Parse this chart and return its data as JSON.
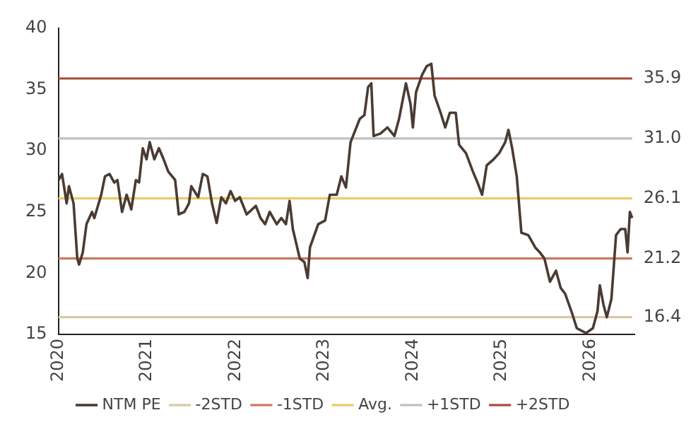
{
  "chart_data": {
    "type": "line",
    "xlim": [
      2020,
      2026.5
    ],
    "xticks": [
      2020,
      2021,
      2022,
      2023,
      2024,
      2025,
      2026
    ],
    "ylim": [
      15,
      40
    ],
    "yticks": [
      15,
      20,
      25,
      30,
      35,
      40
    ],
    "grid": false,
    "legend": "bottom",
    "marker": "none",
    "line_style": "solid",
    "series": [
      {
        "name": "NTM PE",
        "color": "#4a3b32",
        "x": [
          2020.005,
          2020.042,
          2020.094,
          2020.12,
          2020.172,
          2020.214,
          2020.234,
          2020.276,
          2020.318,
          2020.38,
          2020.406,
          2020.484,
          2020.526,
          2020.578,
          2020.63,
          2020.667,
          2020.719,
          2020.771,
          2020.823,
          2020.875,
          2020.911,
          2020.953,
          2020.995,
          2021.031,
          2021.083,
          2021.135,
          2021.188,
          2021.24,
          2021.318,
          2021.359,
          2021.422,
          2021.474,
          2021.5,
          2021.578,
          2021.63,
          2021.682,
          2021.734,
          2021.786,
          2021.839,
          2021.891,
          2021.943,
          2021.995,
          2022.047,
          2022.125,
          2022.229,
          2022.281,
          2022.333,
          2022.385,
          2022.464,
          2022.516,
          2022.568,
          2022.609,
          2022.646,
          2022.724,
          2022.776,
          2022.813,
          2022.839,
          2022.932,
          2023.01,
          2023.063,
          2023.141,
          2023.193,
          2023.245,
          2023.297,
          2023.401,
          2023.453,
          2023.495,
          2023.531,
          2023.557,
          2023.635,
          2023.713,
          2023.792,
          2023.844,
          2023.922,
          2023.974,
          2024.0,
          2024.036,
          2024.104,
          2024.156,
          2024.208,
          2024.245,
          2024.313,
          2024.365,
          2024.417,
          2024.484,
          2024.521,
          2024.599,
          2024.677,
          2024.729,
          2024.781,
          2024.833,
          2024.911,
          2024.974,
          2025.042,
          2025.078,
          2025.12,
          2025.172,
          2025.224,
          2025.302,
          2025.38,
          2025.432,
          2025.484,
          2025.547,
          2025.615,
          2025.667,
          2025.719,
          2025.797,
          2025.849,
          2025.953,
          2026.031,
          2026.083,
          2026.109,
          2026.151,
          2026.188,
          2026.24,
          2026.292,
          2026.344,
          2026.396,
          2026.422,
          2026.448,
          2026.474
        ],
        "values": [
          27.6,
          28.1,
          25.7,
          27.1,
          25.7,
          21.2,
          20.7,
          21.7,
          24.0,
          25.0,
          24.5,
          26.4,
          27.9,
          28.1,
          27.4,
          27.6,
          25.0,
          26.4,
          25.2,
          27.6,
          27.4,
          30.2,
          29.3,
          30.7,
          29.3,
          30.2,
          29.3,
          28.3,
          27.6,
          24.8,
          25.0,
          25.7,
          27.1,
          26.2,
          28.1,
          27.9,
          25.7,
          24.1,
          26.2,
          25.7,
          26.7,
          25.9,
          26.2,
          24.8,
          25.5,
          24.5,
          24.0,
          25.0,
          24.0,
          24.5,
          24.0,
          25.9,
          23.6,
          21.2,
          20.9,
          19.6,
          22.1,
          24.0,
          24.3,
          26.4,
          26.4,
          27.9,
          27.0,
          30.7,
          32.6,
          32.9,
          35.2,
          35.5,
          31.2,
          31.4,
          31.9,
          31.2,
          32.6,
          35.5,
          33.8,
          31.9,
          34.8,
          36.2,
          36.9,
          37.1,
          34.5,
          33.1,
          31.9,
          33.1,
          33.1,
          30.5,
          29.8,
          28.3,
          27.4,
          26.4,
          28.8,
          29.3,
          29.8,
          30.7,
          31.7,
          30.2,
          27.9,
          23.3,
          23.1,
          22.1,
          21.7,
          21.2,
          19.3,
          20.2,
          18.8,
          18.3,
          16.7,
          15.5,
          15.1,
          15.5,
          16.9,
          19.0,
          17.4,
          16.4,
          17.9,
          23.1,
          23.6,
          23.6,
          21.7,
          25.0,
          24.5
        ]
      },
      {
        "name": "-2STD",
        "color": "#d8c8a8",
        "x": [
          2020,
          2026.474
        ],
        "values": [
          16.4,
          16.4
        ],
        "value_labels": [
          null,
          "16.4"
        ]
      },
      {
        "name": "-1STD",
        "color": "#c87a5e",
        "x": [
          2020,
          2026.474
        ],
        "values": [
          21.2,
          21.2
        ],
        "value_labels": [
          null,
          "21.2"
        ]
      },
      {
        "name": "Avg.",
        "color": "#e8cc6a",
        "x": [
          2020,
          2026.474
        ],
        "values": [
          26.1,
          26.1
        ],
        "value_labels": [
          null,
          "26.1"
        ]
      },
      {
        "name": "+1STD",
        "color": "#c0c0c0",
        "x": [
          2020,
          2026.474
        ],
        "values": [
          31.0,
          31.0
        ],
        "value_labels": [
          null,
          "31.0"
        ]
      },
      {
        "name": "+2STD",
        "color": "#a84a3c",
        "x": [
          2020,
          2026.474
        ],
        "values": [
          35.9,
          35.9
        ],
        "value_labels": [
          null,
          "35.9"
        ]
      }
    ]
  }
}
